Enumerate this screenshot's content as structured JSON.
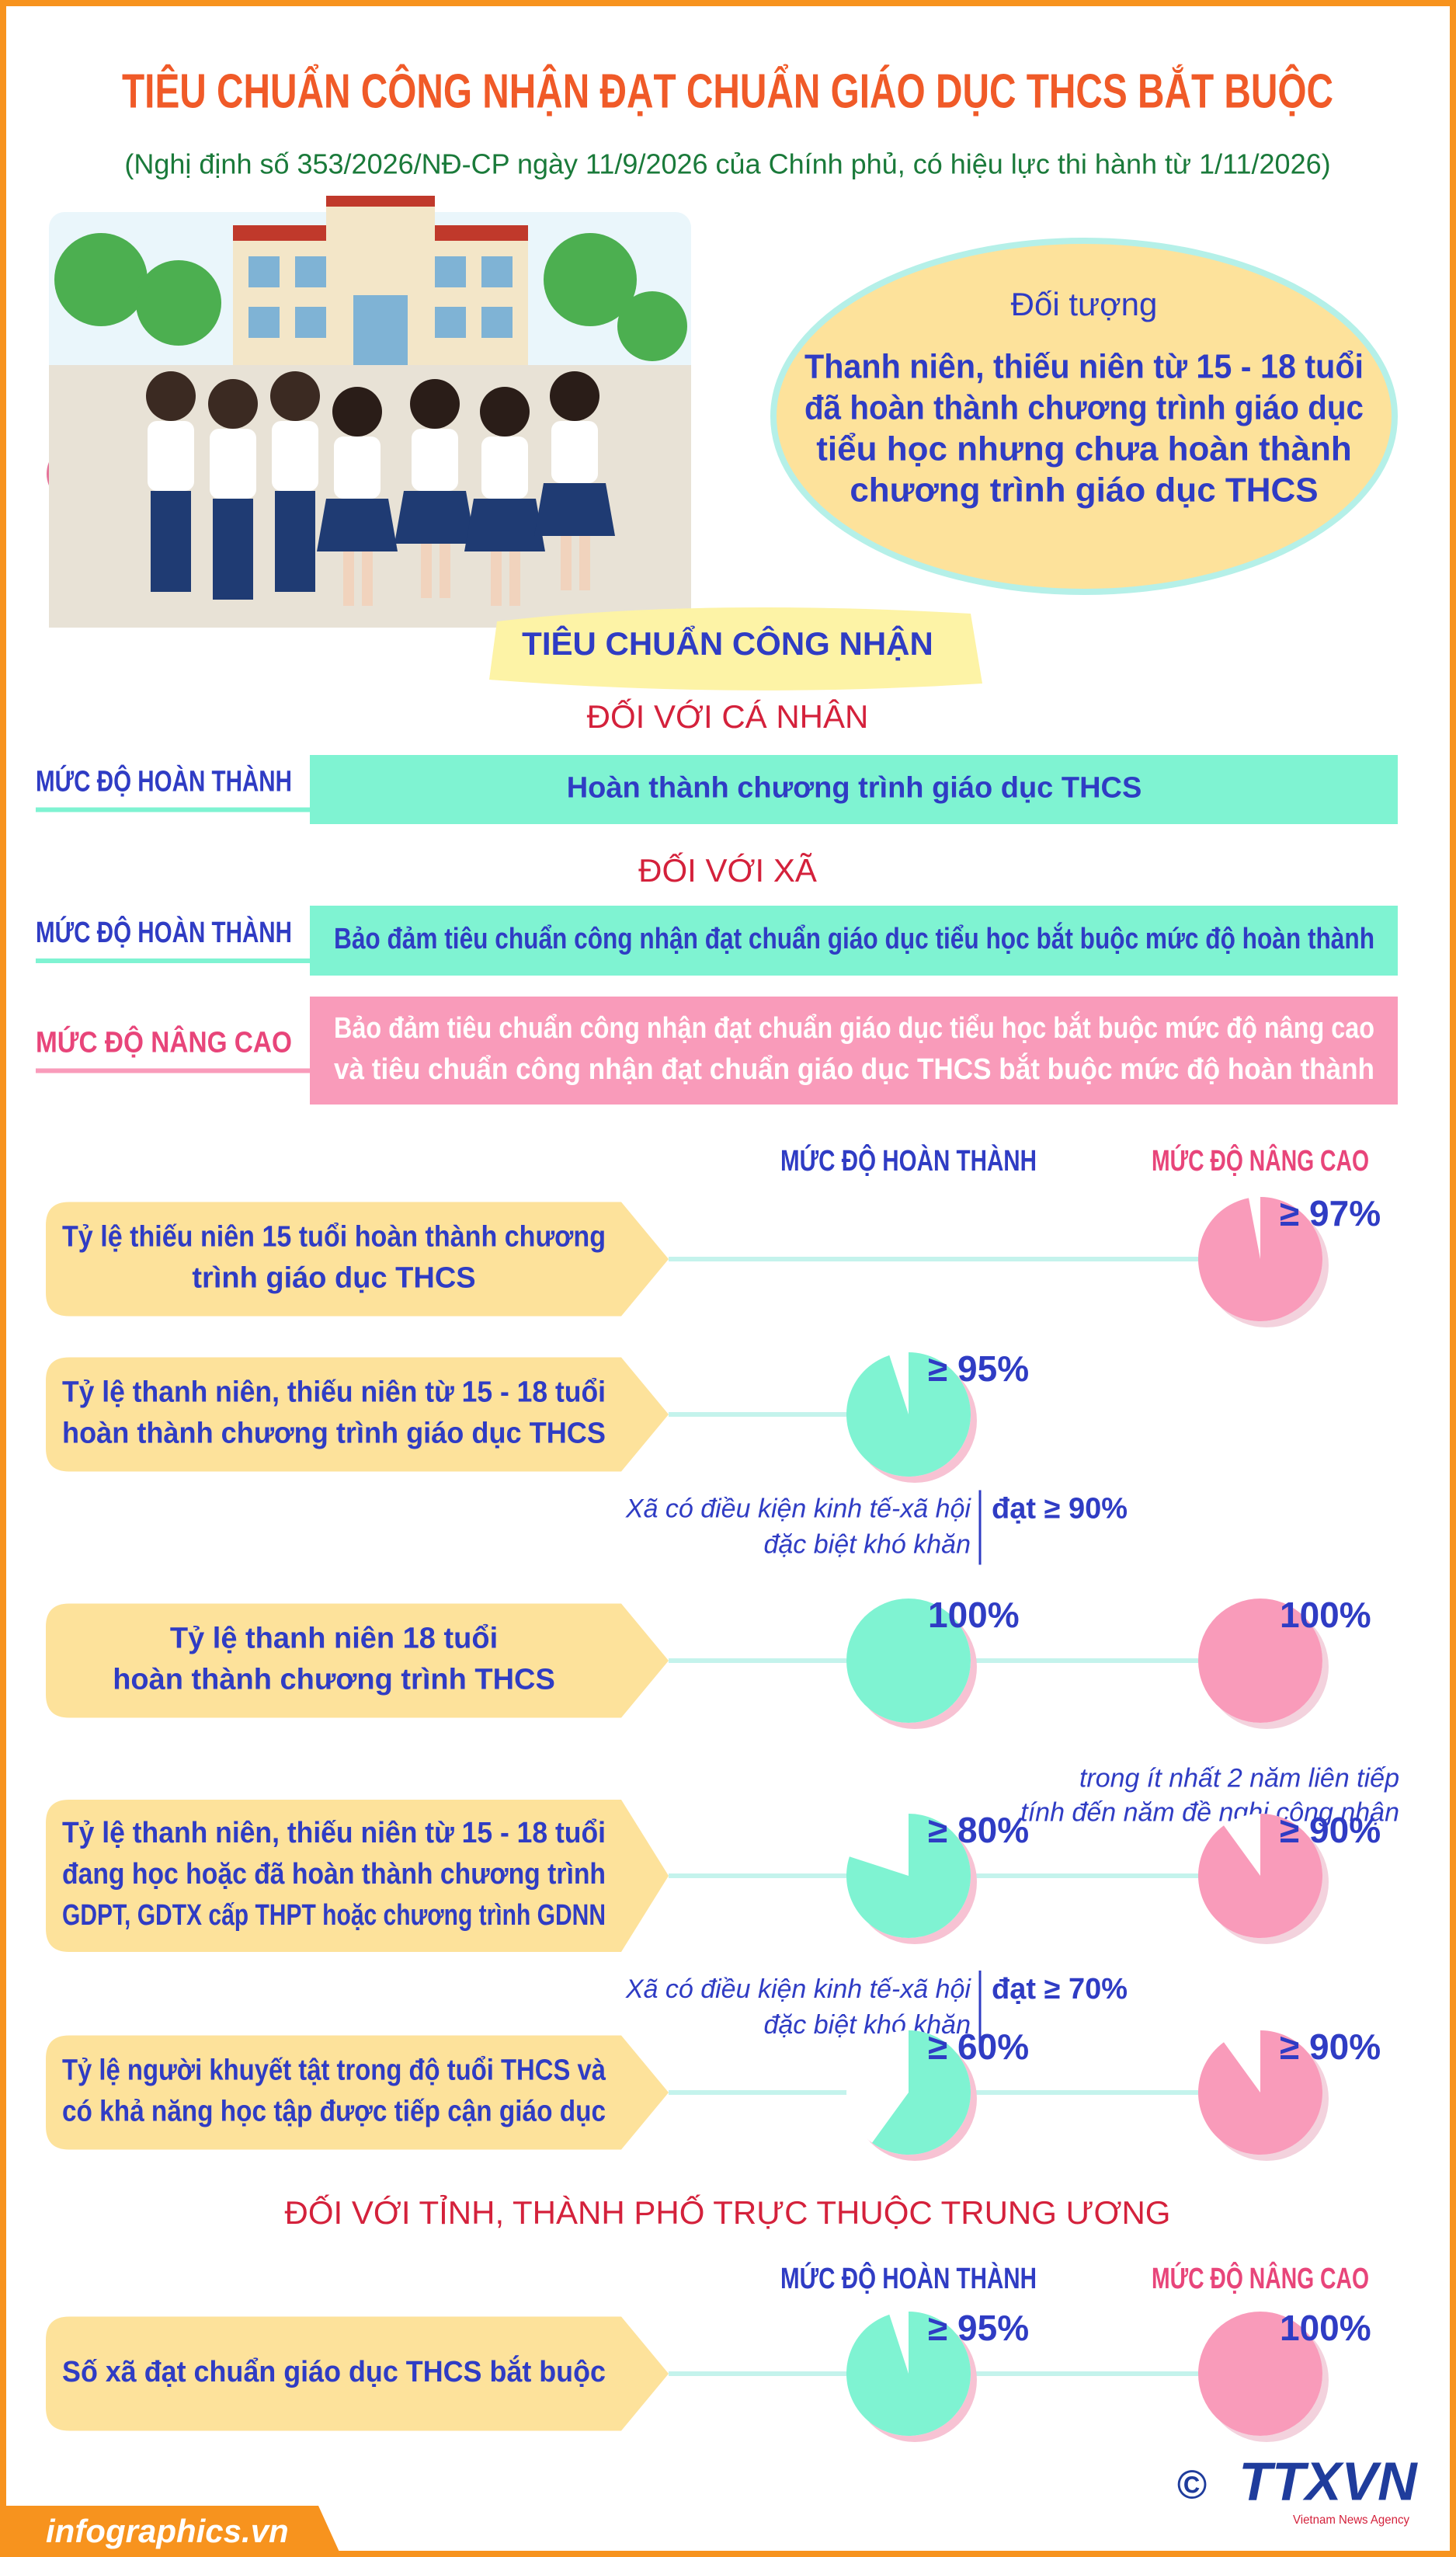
{
  "header": {
    "title": "TIÊU CHUẨN CÔNG NHẬN ĐẠT CHUẨN GIÁO DỤC THCS BẮT BUỘC",
    "subtitle": "(Nghị định số 353/2026/NĐ-CP ngày 11/9/2026 của Chính phủ, có  hiệu lực thi hành từ 1/11/2026)"
  },
  "target": {
    "heading": "Đối tượng",
    "text": [
      "Thanh niên, thiếu niên từ 15 - 18 tuổi",
      "đã hoàn thành chương trình giáo dục",
      "tiểu học nhưng chưa hoàn thành",
      "chương trình giáo dục THCS"
    ]
  },
  "criteria": {
    "heading": "TIÊU CHUẨN CÔNG NHẬN",
    "individual": {
      "heading": "ĐỐI VỚI CÁ NHÂN",
      "rows": [
        {
          "level": "MỨC ĐỘ HOÀN THÀNH",
          "text": [
            "Hoàn thành chương trình giáo dục THCS"
          ]
        }
      ]
    },
    "commune": {
      "heading": "ĐỐI VỚI XÃ",
      "rows": [
        {
          "level": "MỨC ĐỘ HOÀN THÀNH",
          "text": [
            "Bảo đảm tiêu chuẩn công nhận đạt chuẩn giáo dục tiểu học bắt buộc mức độ hoàn thành"
          ]
        },
        {
          "level": "MỨC ĐỘ NÂNG CAO",
          "text": [
            "Bảo đảm tiêu chuẩn công nhận đạt chuẩn giáo dục tiểu học bắt buộc mức độ nâng cao",
            "và tiêu chuẩn công nhận đạt chuẩn giáo dục THCS bắt buộc mức độ hoàn thành"
          ]
        }
      ],
      "columns": [
        "MỨC ĐỘ HOÀN THÀNH",
        "MỨC ĐỘ NÂNG CAO"
      ],
      "indicators": [
        {
          "text": [
            "Tỷ lệ thiếu niên 15 tuổi hoàn thành chương",
            "trình giáo dục THCS"
          ],
          "advanced": {
            "label": "≥ 97%",
            "value": 97
          }
        },
        {
          "text": [
            "Tỷ lệ thanh niên, thiếu niên từ 15 - 18 tuổi",
            "hoàn thành chương trình giáo dục THCS"
          ],
          "complete": {
            "label": "≥ 95%",
            "value": 95
          },
          "note": {
            "text": [
              "Xã có điều kiện kinh tế-xã hội",
              "đặc biệt khó khăn"
            ],
            "threshold": "đạt ≥ 90%"
          }
        },
        {
          "text": [
            "Tỷ lệ thanh niên 18 tuổi",
            "hoàn thành chương trình THCS"
          ],
          "complete": {
            "label": "100%",
            "value": 100
          },
          "advanced": {
            "label": "100%",
            "value": 100
          },
          "note": {
            "text": [
              "trong ít nhất 2 năm liên tiếp",
              "tính đến năm đề nghị công nhận"
            ]
          }
        },
        {
          "text": [
            "Tỷ lệ thanh niên, thiếu niên từ 15 - 18 tuổi",
            "đang học hoặc đã hoàn thành chương trình",
            "GDPT, GDTX cấp THPT hoặc chương trình GDNN"
          ],
          "complete": {
            "label": "≥ 80%",
            "value": 80
          },
          "advanced": {
            "label": "≥ 90%",
            "value": 90
          },
          "note": {
            "text": [
              "Xã có điều kiện kinh tế-xã hội",
              "đặc biệt khó khăn"
            ],
            "threshold": "đạt ≥ 70%"
          }
        },
        {
          "text": [
            "Tỷ lệ người khuyết tật trong độ tuổi THCS và",
            "có khả năng học tập được tiếp cận giáo dục"
          ],
          "complete": {
            "label": "≥ 60%",
            "value": 60
          },
          "advanced": {
            "label": "≥ 90%",
            "value": 90
          }
        }
      ]
    },
    "province": {
      "heading": "ĐỐI VỚI TỈNH, THÀNH PHỐ TRỰC THUỘC TRUNG ƯƠNG",
      "columns": [
        "MỨC ĐỘ HOÀN THÀNH",
        "MỨC ĐỘ NÂNG CAO"
      ],
      "indicators": [
        {
          "text": [
            "Số xã đạt chuẩn giáo dục THCS bắt buộc"
          ],
          "complete": {
            "label": "≥ 95%",
            "value": 95
          },
          "advanced": {
            "label": "100%",
            "value": 100
          }
        }
      ]
    }
  },
  "footer": {
    "site": "infographics.vn",
    "copyright": "©",
    "agency": "TTXVN",
    "agency_subtitle": "Vietnam News Agency"
  }
}
